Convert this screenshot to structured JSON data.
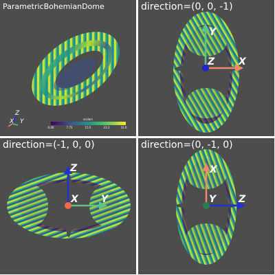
{
  "views": [
    {
      "title": "ParametricBohemianDome"
    },
    {
      "title": "direction=(0, 0, -1)"
    },
    {
      "title": "direction=(-1, 0, 0)"
    },
    {
      "title": "direction=(0, -1, 0)"
    }
  ],
  "colorbar": {
    "title": "scalars",
    "ticks": [
      "0.00",
      "7.75",
      "15.5",
      "23.3",
      "31.0"
    ]
  },
  "axes": {
    "x": "X",
    "y": "Y",
    "z": "Z"
  },
  "colors": {
    "background": "#4d4d4d",
    "x_axis": "#ef8a62",
    "y_axis": "#5fc48c",
    "z_axis": "#2233cc",
    "dark_purple": "#440154",
    "teal": "#21918c",
    "green": "#5ec962",
    "yellow": "#fde725"
  }
}
